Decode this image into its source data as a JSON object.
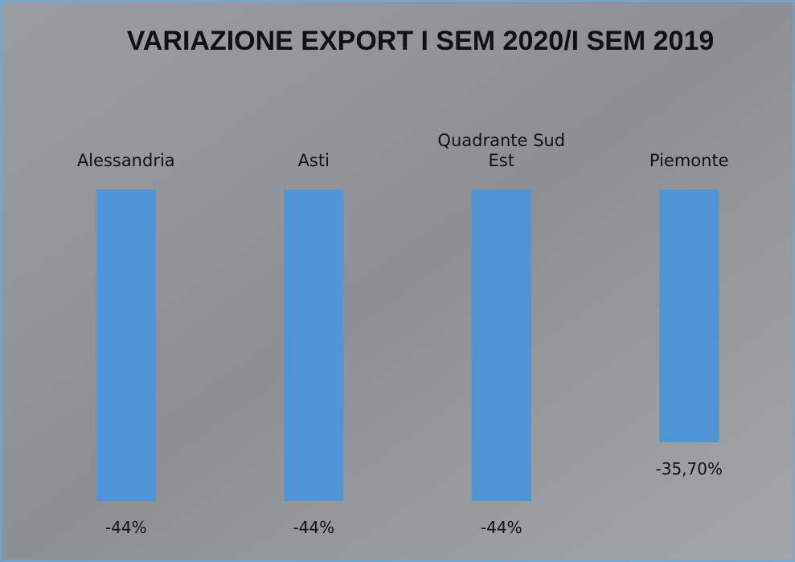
{
  "chart_data": {
    "type": "bar",
    "title": "VARIAZIONE EXPORT I SEM 2020/I SEM 2019",
    "categories": [
      "Alessandria",
      "Asti",
      "Quadrante Sud Est",
      "Piemonte"
    ],
    "values": [
      -44,
      -44,
      -44,
      -35.7
    ],
    "value_labels": [
      "-44%",
      "-44%",
      "-44%",
      "-35,70%"
    ],
    "color": "#4f94d4",
    "ylim": [
      -44,
      0
    ]
  }
}
